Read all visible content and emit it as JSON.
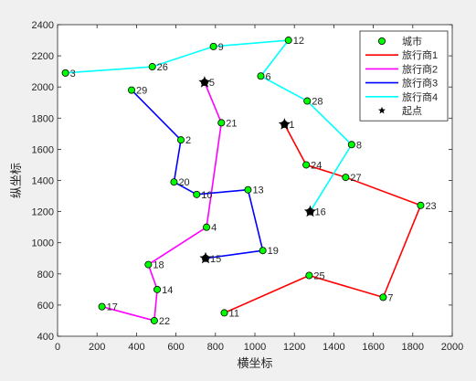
{
  "chart_data": {
    "type": "scatter",
    "title": "",
    "xlabel": "横坐标",
    "ylabel": "纵坐标",
    "xlim": [
      0,
      2000
    ],
    "ylim": [
      400,
      2400
    ],
    "xticks": [
      0,
      200,
      400,
      600,
      800,
      1000,
      1200,
      1400,
      1600,
      1800,
      2000
    ],
    "yticks": [
      400,
      600,
      800,
      1000,
      1200,
      1400,
      1600,
      1800,
      2000,
      2200,
      2400
    ],
    "grid": false,
    "legend_position": "top-right",
    "legend": [
      "城市",
      "旅行商1",
      "旅行商2",
      "旅行商3",
      "旅行商4",
      "起点"
    ],
    "cities": [
      {
        "id": "1",
        "x": 1150,
        "y": 1760
      },
      {
        "id": "2",
        "x": 625,
        "y": 1660
      },
      {
        "id": "3",
        "x": 40,
        "y": 2090
      },
      {
        "id": "4",
        "x": 755,
        "y": 1100
      },
      {
        "id": "5",
        "x": 745,
        "y": 2030
      },
      {
        "id": "6",
        "x": 1030,
        "y": 2070
      },
      {
        "id": "7",
        "x": 1650,
        "y": 650
      },
      {
        "id": "8",
        "x": 1490,
        "y": 1630
      },
      {
        "id": "9",
        "x": 790,
        "y": 2260
      },
      {
        "id": "10",
        "x": 705,
        "y": 1310
      },
      {
        "id": "11",
        "x": 845,
        "y": 550
      },
      {
        "id": "12",
        "x": 1170,
        "y": 2300
      },
      {
        "id": "13",
        "x": 965,
        "y": 1340
      },
      {
        "id": "14",
        "x": 505,
        "y": 700
      },
      {
        "id": "15",
        "x": 750,
        "y": 900
      },
      {
        "id": "16",
        "x": 1280,
        "y": 1200
      },
      {
        "id": "17",
        "x": 225,
        "y": 590
      },
      {
        "id": "18",
        "x": 460,
        "y": 860
      },
      {
        "id": "19",
        "x": 1040,
        "y": 950
      },
      {
        "id": "20",
        "x": 590,
        "y": 1390
      },
      {
        "id": "21",
        "x": 830,
        "y": 1770
      },
      {
        "id": "22",
        "x": 490,
        "y": 500
      },
      {
        "id": "23",
        "x": 1840,
        "y": 1240
      },
      {
        "id": "24",
        "x": 1260,
        "y": 1500
      },
      {
        "id": "25",
        "x": 1275,
        "y": 790
      },
      {
        "id": "26",
        "x": 480,
        "y": 2130
      },
      {
        "id": "27",
        "x": 1460,
        "y": 1420
      },
      {
        "id": "28",
        "x": 1265,
        "y": 1910
      },
      {
        "id": "29",
        "x": 375,
        "y": 1980
      }
    ],
    "start_points": [
      {
        "x": 1150,
        "y": 1760
      },
      {
        "x": 745,
        "y": 2030
      },
      {
        "x": 750,
        "y": 900
      },
      {
        "x": 1280,
        "y": 1200
      }
    ],
    "series": [
      {
        "name": "旅行商1",
        "color": "#ff0000",
        "route": [
          "1",
          "24",
          "27",
          "23",
          "7",
          "25",
          "11"
        ]
      },
      {
        "name": "旅行商2",
        "color": "#ff00ff",
        "route": [
          "5",
          "21",
          "4",
          "18",
          "14",
          "22",
          "17"
        ]
      },
      {
        "name": "旅行商3",
        "color": "#0000ff",
        "route": [
          "15",
          "19",
          "13",
          "10",
          "20",
          "2",
          "29"
        ]
      },
      {
        "name": "旅行商4",
        "color": "#00ffff",
        "route": [
          "16",
          "8",
          "28",
          "6",
          "12",
          "9",
          "26",
          "3"
        ]
      }
    ],
    "city_style": {
      "fill": "#00ff00",
      "stroke": "#000000"
    },
    "start_style": {
      "fill": "#000000"
    }
  }
}
